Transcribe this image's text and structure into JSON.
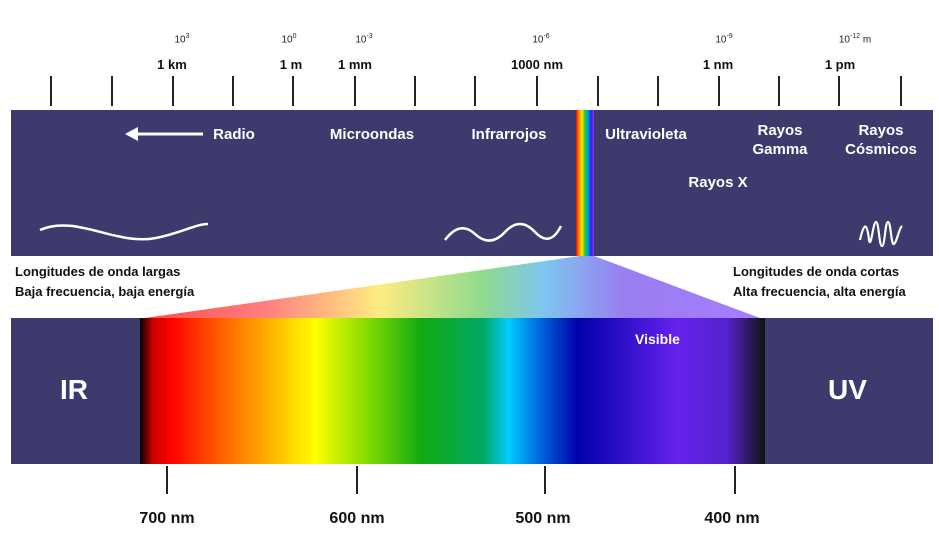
{
  "scale": {
    "exponents": [
      {
        "base": "10",
        "power": "3"
      },
      {
        "base": "10",
        "power": "0"
      },
      {
        "base": "10",
        "power": "-3"
      },
      {
        "base": "10",
        "power": "-6"
      },
      {
        "base": "10",
        "power": "-9"
      },
      {
        "base": "10",
        "power": "-12",
        "suffix": " m"
      }
    ],
    "units": [
      "1 km",
      "1 m",
      "1 mm",
      "1000 nm",
      "1 nm",
      "1 pm"
    ]
  },
  "bands": {
    "radio": "Radio",
    "microwave": "Microondas",
    "infrared": "Infrarrojos",
    "ultraviolet": "Ultravioleta",
    "gamma_line1": "Rayos",
    "gamma_line2": "Gamma",
    "cosmic_line1": "Rayos",
    "cosmic_line2": "Cósmicos",
    "xray": "Rayos X"
  },
  "left_note": {
    "line1": "Longitudes de onda largas",
    "line2": "Baja frecuencia, baja energía"
  },
  "right_note": {
    "line1": "Longitudes de onda cortas",
    "line2": "Alta frecuencia, alta energía"
  },
  "spectrum": {
    "ir_label": "IR",
    "uv_label": "UV",
    "visible_label": "Visible"
  },
  "wavelengths": [
    "700 nm",
    "600 nm",
    "500 nm",
    "400 nm"
  ],
  "colors": {
    "band_bg": "#3d3a6e"
  }
}
